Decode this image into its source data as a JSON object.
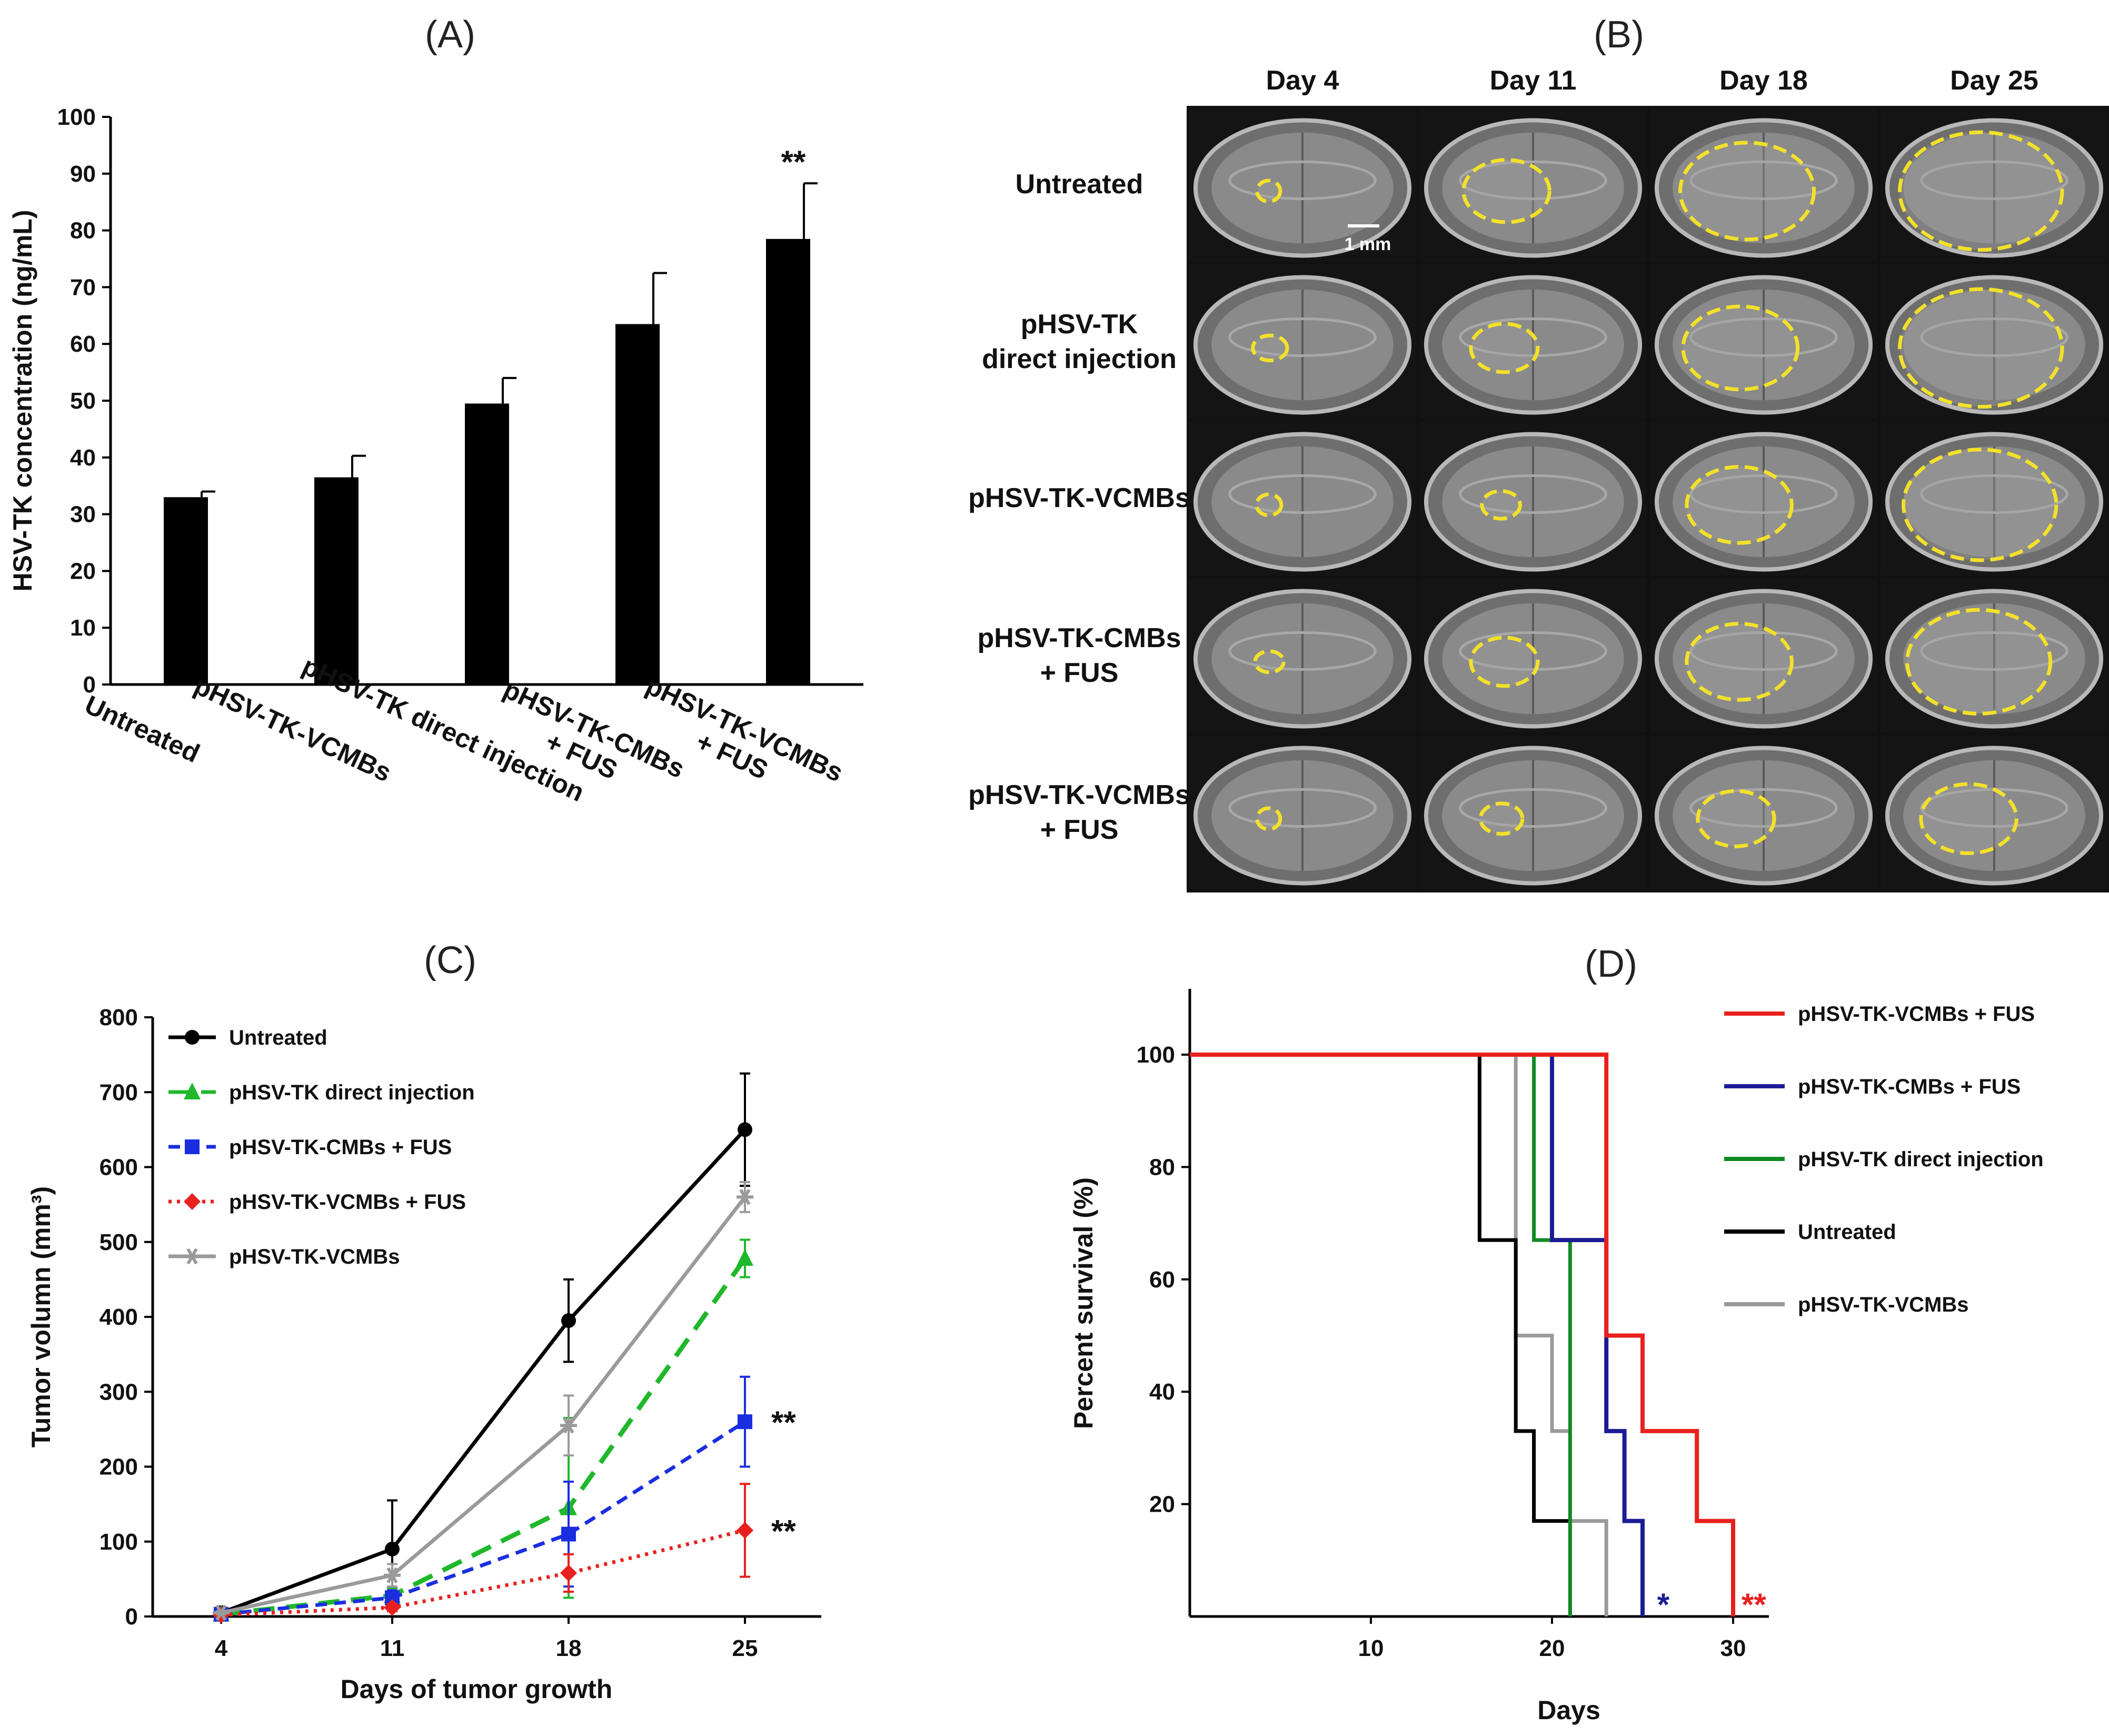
{
  "panels": {
    "a": "(A)",
    "b": "(B)",
    "c": "(C)",
    "d": "(D)"
  },
  "colors": {
    "black": "#000000",
    "green": "#1fb82b",
    "blue": "#1a2ee0",
    "red": "#e8201e",
    "gray": "#9a9a9a",
    "navy": "#1c1c96",
    "km_green": "#0f8a23",
    "tumor_outline": "#f2e12a"
  },
  "chart_data": [
    {
      "id": "A",
      "type": "bar",
      "title": "(A)",
      "xlabel": "",
      "ylabel": "HSV-TK  concentration (ng/mL)",
      "ylim": [
        0,
        100
      ],
      "yticks": [
        0,
        10,
        20,
        30,
        40,
        50,
        60,
        70,
        80,
        90,
        100
      ],
      "categories": [
        "Untreated",
        "pHSV-TK-VCMBs",
        "pHSV-TK  direct injection",
        "pHSV-TK-CMBs + FUS",
        "pHSV-TK-VCMBs + FUS"
      ],
      "category_lines": [
        [
          "Untreated"
        ],
        [
          "pHSV-TK-VCMBs"
        ],
        [
          "pHSV-TK  direct injection"
        ],
        [
          "pHSV-TK-CMBs",
          "+ FUS"
        ],
        [
          "pHSV-TK-VCMBs",
          "+ FUS"
        ]
      ],
      "values": [
        33,
        36.5,
        49.5,
        63.5,
        78.5
      ],
      "errors": [
        1,
        3.8,
        4.5,
        9,
        9.8
      ],
      "annotations": [
        {
          "category": "pHSV-TK-VCMBs + FUS",
          "text": "**"
        }
      ]
    },
    {
      "id": "C",
      "type": "line",
      "title": "(C)",
      "xlabel": "Days of tumor growth",
      "ylabel": "Tumor volumn (mm³)",
      "x": [
        4,
        11,
        18,
        25
      ],
      "ylim": [
        0,
        800
      ],
      "yticks": [
        0,
        100,
        200,
        300,
        400,
        500,
        600,
        700,
        800
      ],
      "legend_position": "top-left",
      "series": [
        {
          "name": "Untreated",
          "values": [
            5,
            90,
            395,
            650
          ],
          "errors": [
            2,
            65,
            55,
            75
          ],
          "color": "#000000",
          "dash": "solid",
          "marker": "circle"
        },
        {
          "name": "pHSV-TK direct injection",
          "values": [
            3,
            28,
            145,
            478
          ],
          "errors": [
            2,
            10,
            120,
            25
          ],
          "color": "#1fb82b",
          "dash": "long",
          "marker": "triangle"
        },
        {
          "name": "pHSV-TK-CMBs + FUS",
          "values": [
            3,
            25,
            110,
            260
          ],
          "errors": [
            2,
            10,
            70,
            60
          ],
          "color": "#1a2ee0",
          "dash": "short",
          "marker": "square"
        },
        {
          "name": "pHSV-TK-VCMBs + FUS",
          "values": [
            2,
            12,
            58,
            115
          ],
          "errors": [
            1,
            5,
            25,
            62
          ],
          "color": "#e8201e",
          "dash": "dotted",
          "marker": "diamond"
        },
        {
          "name": "pHSV-TK-VCMBs",
          "values": [
            5,
            55,
            255,
            560
          ],
          "errors": [
            2,
            15,
            40,
            20
          ],
          "color": "#9a9a9a",
          "dash": "solid",
          "marker": "star"
        }
      ],
      "annotations": [
        {
          "series": "pHSV-TK-CMBs + FUS",
          "x": 25,
          "text": "**"
        },
        {
          "series": "pHSV-TK-VCMBs + FUS",
          "x": 25,
          "text": "**"
        }
      ]
    },
    {
      "id": "D",
      "type": "line",
      "subtype": "kaplan-meier",
      "title": "(D)",
      "xlabel": "Days",
      "ylabel": "Percent survival (%)",
      "xlim": [
        0,
        32
      ],
      "xticks": [
        10,
        20,
        30
      ],
      "ylim": [
        0,
        110
      ],
      "yticks": [
        20,
        40,
        60,
        80,
        100
      ],
      "legend_position": "top-right",
      "series": [
        {
          "name": "pHSV-TK-VCMBs + FUS",
          "color": "#e8201e",
          "steps": [
            [
              0,
              100
            ],
            [
              23,
              100
            ],
            [
              23,
              50
            ],
            [
              25,
              50
            ],
            [
              25,
              33
            ],
            [
              28,
              33
            ],
            [
              28,
              17
            ],
            [
              30,
              17
            ],
            [
              30,
              0
            ]
          ]
        },
        {
          "name": "pHSV-TK-CMBs + FUS",
          "color": "#1c1c96",
          "steps": [
            [
              0,
              100
            ],
            [
              20,
              100
            ],
            [
              20,
              67
            ],
            [
              23,
              67
            ],
            [
              23,
              33
            ],
            [
              24,
              33
            ],
            [
              24,
              17
            ],
            [
              25,
              17
            ],
            [
              25,
              0
            ]
          ]
        },
        {
          "name": "pHSV-TK direct injection",
          "color": "#0f8a23",
          "steps": [
            [
              0,
              100
            ],
            [
              19,
              100
            ],
            [
              19,
              67
            ],
            [
              21,
              67
            ],
            [
              21,
              0
            ]
          ]
        },
        {
          "name": "Untreated",
          "color": "#000000",
          "steps": [
            [
              0,
              100
            ],
            [
              16,
              100
            ],
            [
              16,
              67
            ],
            [
              18,
              67
            ],
            [
              18,
              50
            ],
            [
              18,
              33
            ],
            [
              19,
              33
            ],
            [
              19,
              17
            ],
            [
              21,
              17
            ],
            [
              21,
              0
            ]
          ]
        },
        {
          "name": "pHSV-TK-VCMBs",
          "color": "#9a9a9a",
          "steps": [
            [
              0,
              100
            ],
            [
              18,
              100
            ],
            [
              18,
              50
            ],
            [
              20,
              50
            ],
            [
              20,
              33
            ],
            [
              21,
              33
            ],
            [
              21,
              17
            ],
            [
              23,
              17
            ],
            [
              23,
              0
            ]
          ]
        }
      ],
      "annotations": [
        {
          "text": "*",
          "x": 26,
          "color": "#1c1c96"
        },
        {
          "text": "**",
          "x": 31,
          "color": "#e8201e"
        }
      ]
    }
  ],
  "mri_grid": {
    "title": "(B)",
    "columns": [
      "Day 4",
      "Day 11",
      "Day 18",
      "Day 25"
    ],
    "rows": [
      {
        "label": [
          "Untreated"
        ],
        "tumor_sizes": [
          0.12,
          0.45,
          0.7,
          0.85
        ]
      },
      {
        "label": [
          "pHSV-TK",
          "direct injection"
        ],
        "tumor_sizes": [
          0.18,
          0.35,
          0.6,
          0.85
        ]
      },
      {
        "label": [
          "pHSV-TK-VCMBs"
        ],
        "tumor_sizes": [
          0.13,
          0.2,
          0.55,
          0.8
        ]
      },
      {
        "label": [
          "pHSV-TK-CMBs",
          "+ FUS"
        ],
        "tumor_sizes": [
          0.15,
          0.35,
          0.55,
          0.75
        ]
      },
      {
        "label": [
          "pHSV-TK-VCMBs",
          "+ FUS"
        ],
        "tumor_sizes": [
          0.12,
          0.22,
          0.4,
          0.5
        ]
      }
    ],
    "scale_bar": "1 mm"
  }
}
